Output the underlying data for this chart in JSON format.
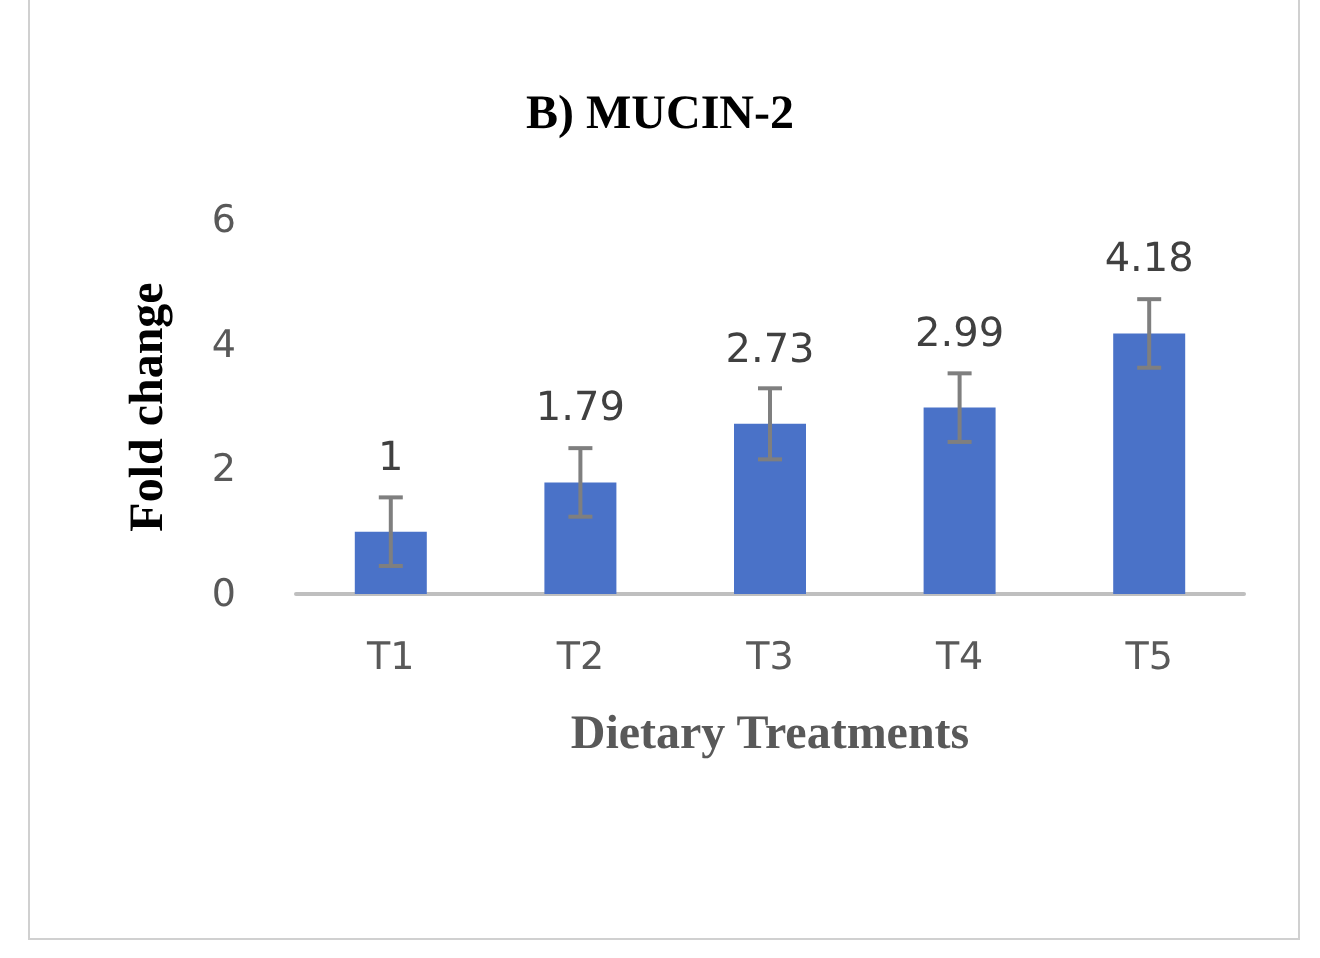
{
  "chart_data": {
    "type": "bar",
    "title": "B) MUCIN-2",
    "xlabel": "Dietary Treatments",
    "ylabel": "Fold change",
    "categories": [
      "T1",
      "T2",
      "T3",
      "T4",
      "T5"
    ],
    "values": [
      1,
      1.79,
      2.73,
      2.99,
      4.18
    ],
    "errors": [
      0.55,
      0.55,
      0.57,
      0.55,
      0.55
    ],
    "color": "#4a72c8",
    "ylim": [
      0,
      6
    ],
    "yticks": [
      0,
      2,
      4,
      6
    ],
    "grid": false,
    "data_labels": true
  }
}
